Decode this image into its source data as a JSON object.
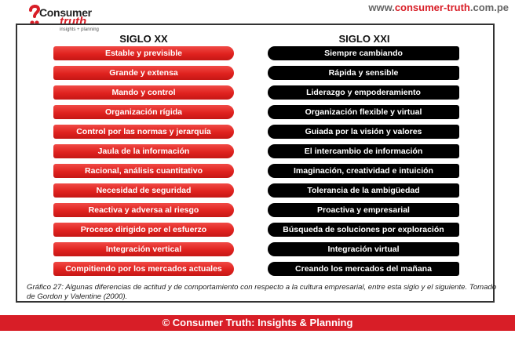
{
  "header": {
    "logo_word1": "Consumer",
    "logo_word2": "truth",
    "logo_tagline": "insights + planning",
    "url_prefix": "www.",
    "url_brand": "consumer-truth",
    "url_suffix": ".com.pe"
  },
  "columns": {
    "left_title": "SIGLO XX",
    "right_title": "SIGLO XXI"
  },
  "siglo_xx": [
    "Estable y previsible",
    "Grande y extensa",
    "Mando y control",
    "Organización rígida",
    "Control por las normas y jerarquía",
    "Jaula de la información",
    "Racional, análisis cuantitativo",
    "Necesidad de seguridad",
    "Reactiva y adversa al riesgo",
    "Proceso dirigido por el esfuerzo",
    "Integración vertical",
    "Compitiendo por los mercados actuales"
  ],
  "siglo_xxi": [
    "Siempre cambiando",
    "Rápida y sensible",
    "Liderazgo y empoderamiento",
    "Organización flexible y virtual",
    "Guiada por la visión y valores",
    "El intercambio de información",
    "Imaginación, creatividad e intuición",
    "Tolerancia de la ambigüedad",
    "Proactiva y empresarial",
    "Búsqueda de soluciones por exploración",
    "Integración virtual",
    "Creando los mercados del mañana"
  ],
  "caption": "Gráfico 27: Algunas diferencias de actitud y de comportamiento con respecto a la cultura empresarial, entre esta siglo y el siguiente. Tomado de Gordon y  Valentine (2000).",
  "footer": "© Consumer Truth: Insights & Planning",
  "colors": {
    "brand_red": "#d81e27",
    "bar_red": "#e0221f",
    "bar_black": "#000000"
  }
}
